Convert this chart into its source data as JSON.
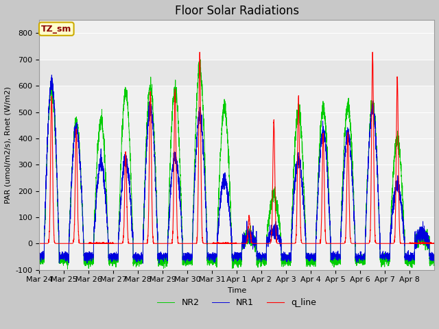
{
  "title": "Floor Solar Radiations",
  "xlabel": "Time",
  "ylabel": "PAR (umol/m2/s), Rnet (W/m2)",
  "ylim": [
    -100,
    850
  ],
  "yticks": [
    -100,
    0,
    100,
    200,
    300,
    400,
    500,
    600,
    700,
    800
  ],
  "line_colors": {
    "q_line": "#ff0000",
    "NR1": "#0000dd",
    "NR2": "#00cc00"
  },
  "tz_label": "TZ_sm",
  "tz_bg": "#ffffcc",
  "tz_border": "#ccaa00",
  "x_tick_labels": [
    "Mar 24",
    "Mar 25",
    "Mar 26",
    "Mar 27",
    "Mar 28",
    "Mar 29",
    "Mar 30",
    "Mar 31",
    "Apr 1",
    "Apr 2",
    "Apr 3",
    "Apr 4",
    "Apr 5",
    "Apr 6",
    "Apr 7",
    "Apr 8"
  ],
  "num_days": 16,
  "title_fontsize": 12,
  "label_fontsize": 8,
  "tick_fontsize": 8,
  "legend_fontsize": 9,
  "q_peaks": [
    560,
    430,
    0,
    345,
    580,
    580,
    730,
    0,
    100,
    465,
    550,
    415,
    415,
    720,
    635,
    0
  ],
  "nr1_peaks": [
    610,
    440,
    310,
    315,
    515,
    330,
    490,
    240,
    30,
    50,
    320,
    425,
    415,
    510,
    220,
    40
  ],
  "nr2_peaks": [
    585,
    455,
    465,
    575,
    595,
    590,
    670,
    515,
    30,
    185,
    510,
    510,
    525,
    525,
    400,
    30
  ],
  "night_nr1": -50,
  "night_nr2": -65
}
